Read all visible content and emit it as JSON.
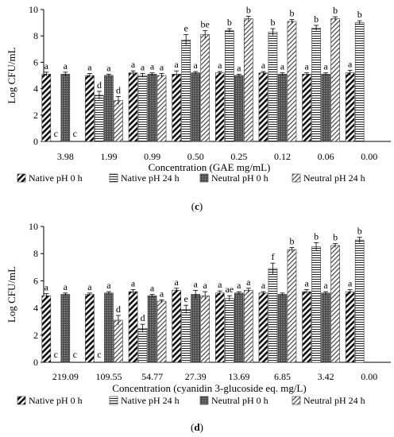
{
  "chart_data": [
    {
      "type": "bar",
      "panel_label": "(c)",
      "ylabel": "Log CFU/mL",
      "xlabel": "Concentration (GAE mg/mL)",
      "ylim": [
        0,
        10
      ],
      "yticks": [
        0,
        2,
        4,
        6,
        8,
        10
      ],
      "grid": false,
      "legend_position": "bottom",
      "categories": [
        "3.98",
        "1.99",
        "0.99",
        "0.50",
        "0.25",
        "0.12",
        "0.06",
        "0.00"
      ],
      "series": [
        {
          "name": "Native pH 0 h",
          "pattern": "diag-thick",
          "values": [
            5.1,
            5.0,
            5.2,
            5.1,
            5.2,
            5.2,
            5.1,
            5.2
          ],
          "errors": [
            0.15,
            0.15,
            0.15,
            0.25,
            0.1,
            0.1,
            0.1,
            0.2
          ],
          "labels": [
            "a",
            "a",
            "a",
            "a",
            "a",
            "a",
            "a",
            "a"
          ]
        },
        {
          "name": "Native pH 24 h",
          "pattern": "horizontal",
          "values": [
            0,
            3.5,
            5.0,
            7.7,
            8.4,
            8.3,
            8.6,
            9.0
          ],
          "errors": [
            0,
            0.3,
            0.15,
            0.4,
            0.15,
            0.25,
            0.2,
            0.15
          ],
          "labels": [
            "c",
            "d",
            "a",
            "e",
            "b",
            "b",
            "b",
            "b"
          ]
        },
        {
          "name": "Neutral pH 0 h",
          "pattern": "dense",
          "values": [
            5.1,
            5.0,
            5.1,
            5.2,
            5.0,
            5.1,
            5.1,
            null
          ],
          "errors": [
            0.15,
            0.1,
            0.1,
            0.1,
            0.1,
            0.1,
            0.1,
            0
          ],
          "labels": [
            "a",
            "a",
            "a",
            "a",
            "a",
            "a",
            "a",
            ""
          ]
        },
        {
          "name": "Neutral pH 24 h",
          "pattern": "diag-thin",
          "values": [
            0,
            3.1,
            5.0,
            8.1,
            9.3,
            9.1,
            9.3,
            null
          ],
          "errors": [
            0,
            0.3,
            0.15,
            0.3,
            0.2,
            0.15,
            0.15,
            0
          ],
          "labels": [
            "c",
            "d",
            "a",
            "be",
            "b",
            "b",
            "b",
            ""
          ]
        }
      ]
    },
    {
      "type": "bar",
      "panel_label": "(d)",
      "ylabel": "Log CFU/mL",
      "xlabel": "Concentration (cyanidin 3-glucoside eq. mg/L)",
      "ylim": [
        0,
        10
      ],
      "yticks": [
        0,
        2,
        4,
        6,
        8,
        10
      ],
      "grid": false,
      "legend_position": "bottom",
      "categories": [
        "219.09",
        "109.55",
        "54.77",
        "27.39",
        "13.69",
        "6.85",
        "3.42",
        "0.00"
      ],
      "series": [
        {
          "name": "Native pH 0 h",
          "pattern": "diag-thick",
          "values": [
            4.9,
            5.0,
            5.2,
            5.3,
            5.1,
            5.1,
            5.2,
            5.2
          ],
          "errors": [
            0.15,
            0.1,
            0.15,
            0.15,
            0.15,
            0.1,
            0.15,
            0.15
          ],
          "labels": [
            "a",
            "a",
            "a",
            "a",
            "a",
            "a",
            "a",
            "a"
          ]
        },
        {
          "name": "Native pH 24 h",
          "pattern": "horizontal",
          "values": [
            0,
            0,
            2.5,
            3.9,
            4.7,
            6.9,
            8.5,
            9.0
          ],
          "errors": [
            0,
            0,
            0.3,
            0.3,
            0.2,
            0.4,
            0.3,
            0.2
          ],
          "labels": [
            "c",
            "c",
            "d",
            "e",
            "ae",
            "f",
            "b",
            "b"
          ]
        },
        {
          "name": "Neutral pH 0 h",
          "pattern": "dense",
          "values": [
            5.0,
            5.1,
            4.9,
            5.0,
            5.1,
            5.0,
            5.1,
            null
          ],
          "errors": [
            0.1,
            0.1,
            0.1,
            0.3,
            0.1,
            0.1,
            0.1,
            0
          ],
          "labels": [
            "a",
            "a",
            "a",
            "a",
            "a",
            "",
            "a",
            ""
          ]
        },
        {
          "name": "Neutral pH 24 h",
          "pattern": "diag-thin",
          "values": [
            0,
            3.1,
            4.5,
            4.9,
            5.3,
            8.3,
            8.6,
            null
          ],
          "errors": [
            0,
            0.35,
            0.1,
            0.3,
            0.15,
            0.15,
            0.15,
            0
          ],
          "labels": [
            "c",
            "d",
            "a",
            "a",
            "a",
            "b",
            "b",
            ""
          ]
        }
      ]
    }
  ]
}
